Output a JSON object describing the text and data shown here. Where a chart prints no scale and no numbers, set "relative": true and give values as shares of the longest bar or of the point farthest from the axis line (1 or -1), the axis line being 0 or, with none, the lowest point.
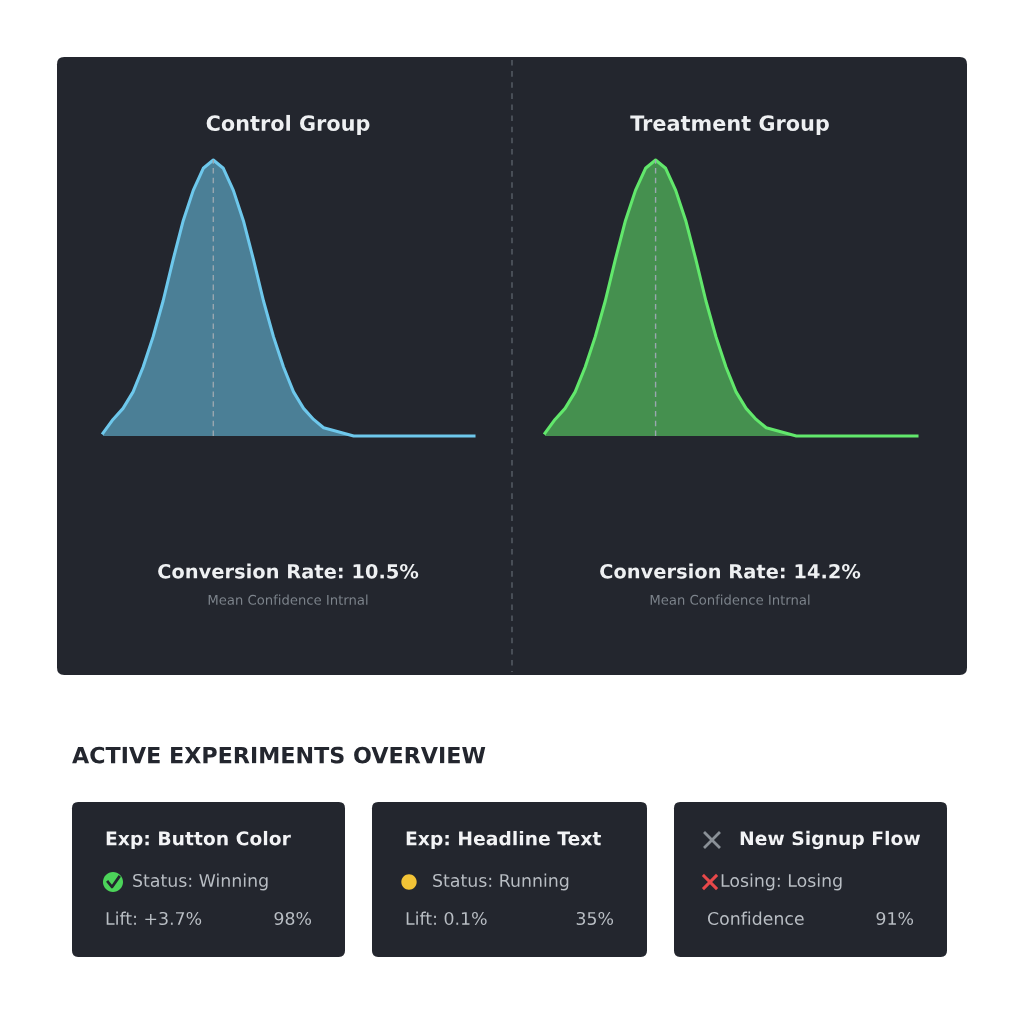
{
  "chart_data": [
    {
      "type": "area",
      "relative": true,
      "title": "Control Group",
      "categories": [
        null,
        null,
        null,
        null,
        null,
        null,
        null,
        null,
        null,
        null,
        null,
        null,
        null,
        null,
        null,
        null,
        null,
        null,
        null,
        null,
        null,
        null,
        null,
        null,
        null,
        null,
        null,
        null,
        null,
        null,
        null,
        null,
        null,
        null,
        null,
        null,
        null,
        null
      ],
      "series": [
        {
          "color": "#6ec8ec",
          "values": [
            0.01,
            0.06,
            0.1,
            0.16,
            0.25,
            0.36,
            0.49,
            0.64,
            0.78,
            0.89,
            0.97,
            1,
            0.97,
            0.89,
            0.78,
            0.64,
            0.49,
            0.36,
            0.25,
            0.16,
            0.1,
            0.06,
            0.03,
            0.02,
            0.01,
            0,
            0,
            0,
            0,
            0,
            0,
            0,
            0,
            0,
            0,
            0,
            0,
            0
          ]
        }
      ],
      "annotations": [
        "Conversion Rate: 10.5%",
        "Mean Confidence Intrnal"
      ]
    },
    {
      "type": "area",
      "relative": true,
      "title": "Treatment Group",
      "categories": [
        null,
        null,
        null,
        null,
        null,
        null,
        null,
        null,
        null,
        null,
        null,
        null,
        null,
        null,
        null,
        null,
        null,
        null,
        null,
        null,
        null,
        null,
        null,
        null,
        null,
        null,
        null,
        null,
        null,
        null,
        null,
        null,
        null,
        null,
        null,
        null,
        null,
        null
      ],
      "series": [
        {
          "color": "#62e86c",
          "values": [
            0.01,
            0.06,
            0.1,
            0.16,
            0.25,
            0.36,
            0.49,
            0.64,
            0.78,
            0.89,
            0.97,
            1,
            0.97,
            0.89,
            0.78,
            0.64,
            0.49,
            0.36,
            0.25,
            0.16,
            0.1,
            0.06,
            0.03,
            0.02,
            0.01,
            0,
            0,
            0,
            0,
            0,
            0,
            0,
            0,
            0,
            0,
            0,
            0,
            0
          ]
        }
      ],
      "annotations": [
        "Conversion Rate: 14.2%",
        "Mean Confidence Intrnal"
      ]
    },
    {
      "type": "other",
      "title": "ACTIVE EXPERIMENTS OVERVIEW",
      "annotations": [
        "Exp: Button Color",
        "Status: Winning",
        "Lift: +3.7%",
        "98%",
        "Exp: Headline Text",
        "Status: Running",
        "Lift: 0.1%",
        "35%",
        "New Signup Flow",
        "Losing: Losing",
        "Confidence",
        "91%"
      ]
    }
  ]
}
